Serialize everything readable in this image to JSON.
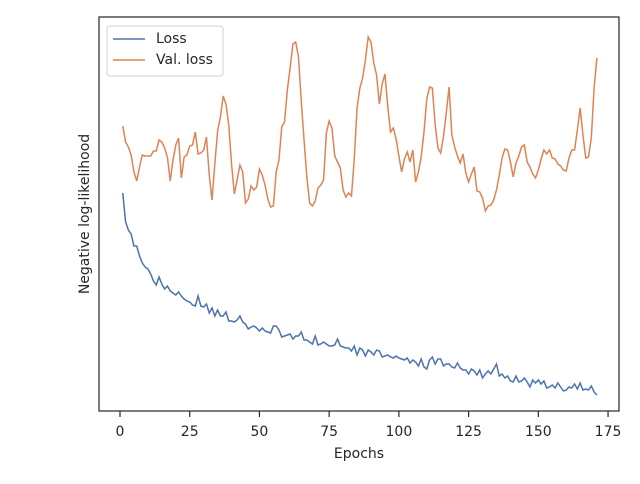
{
  "chart_data": {
    "type": "line",
    "xlabel": "Epochs",
    "ylabel": "Negative log-likelihood",
    "x": [
      1,
      2,
      3,
      4,
      5,
      6,
      7,
      8,
      9,
      10,
      11,
      12,
      13,
      14,
      15,
      16,
      17,
      18,
      19,
      20,
      21,
      22,
      23,
      24,
      25,
      26,
      27,
      28,
      29,
      30,
      31,
      32,
      33,
      34,
      35,
      36,
      37,
      38,
      39,
      40,
      41,
      42,
      43,
      44,
      45,
      46,
      47,
      48,
      49,
      50,
      51,
      52,
      53,
      54,
      55,
      56,
      57,
      58,
      59,
      60,
      61,
      62,
      63,
      64,
      65,
      66,
      67,
      68,
      69,
      70,
      71,
      72,
      73,
      74,
      75,
      76,
      77,
      78,
      79,
      80,
      81,
      82,
      83,
      84,
      85,
      86,
      87,
      88,
      89,
      90,
      91,
      92,
      93,
      94,
      95,
      96,
      97,
      98,
      99,
      100,
      101,
      102,
      103,
      104,
      105,
      106,
      107,
      108,
      109,
      110,
      111,
      112,
      113,
      114,
      115,
      116,
      117,
      118,
      119,
      120,
      121,
      122,
      123,
      124,
      125,
      126,
      127,
      128,
      129,
      130,
      131,
      132,
      133,
      134,
      135,
      136,
      137,
      138,
      139,
      140,
      141,
      142,
      143,
      144,
      145,
      146,
      147,
      148,
      149,
      150,
      151,
      152,
      153,
      154,
      155,
      156,
      157,
      158,
      159,
      160,
      161,
      162,
      163,
      164,
      165,
      166,
      167,
      168,
      169,
      170,
      171
    ],
    "series": [
      {
        "name": "Loss",
        "color": "#4c72b0",
        "values": [
          218,
          189,
          181,
          177,
          165,
          165,
          155,
          148,
          144,
          142,
          137,
          130,
          126,
          134,
          127,
          122,
          125,
          120,
          118,
          116,
          119,
          115,
          112,
          110,
          109,
          106,
          105,
          115,
          105,
          104,
          107,
          98,
          103,
          95,
          101,
          95,
          95,
          99,
          90,
          90,
          89,
          91,
          95,
          89,
          87,
          82,
          84,
          85,
          83,
          80,
          83,
          80,
          79,
          78,
          85,
          85,
          81,
          74,
          75,
          76,
          77,
          72,
          75,
          75,
          79,
          71,
          71,
          69,
          67,
          75,
          66,
          67,
          69,
          67,
          65,
          65,
          66,
          72,
          65,
          64,
          63,
          63,
          60,
          65,
          56,
          63,
          61,
          55,
          61,
          59,
          56,
          61,
          60,
          54,
          55,
          56,
          54,
          53,
          55,
          53,
          52,
          51,
          53,
          48,
          51,
          49,
          45,
          52,
          44,
          42,
          51,
          54,
          47,
          52,
          52,
          45,
          47,
          47,
          44,
          43,
          48,
          43,
          41,
          41,
          37,
          42,
          40,
          36,
          41,
          33,
          37,
          40,
          37,
          42,
          47,
          35,
          37,
          33,
          35,
          30,
          29,
          35,
          29,
          30,
          33,
          29,
          24,
          31,
          28,
          31,
          27,
          30,
          23,
          24,
          26,
          23,
          28,
          24,
          20,
          21,
          24,
          23,
          27,
          22,
          28,
          21,
          22,
          21,
          25,
          19,
          16
        ]
      },
      {
        "name": "Val. loss",
        "color": "#dd8452",
        "values": [
          285,
          269,
          264,
          256,
          239,
          230,
          244,
          256,
          255,
          255,
          255,
          260,
          260,
          271,
          269,
          263,
          254,
          230,
          251,
          266,
          273,
          233,
          254,
          256,
          265,
          266,
          279,
          257,
          258,
          261,
          274,
          236,
          211,
          247,
          280,
          294,
          315,
          307,
          286,
          247,
          217,
          231,
          246,
          239,
          208,
          212,
          225,
          221,
          224,
          242,
          236,
          226,
          212,
          204,
          205,
          239,
          251,
          284,
          289,
          321,
          343,
          367,
          369,
          354,
          310,
          271,
          234,
          208,
          205,
          210,
          223,
          226,
          231,
          278,
          290,
          283,
          255,
          249,
          243,
          221,
          214,
          218,
          215,
          252,
          303,
          323,
          333,
          351,
          374,
          369,
          348,
          336,
          307,
          327,
          337,
          305,
          279,
          283,
          272,
          255,
          239,
          252,
          259,
          249,
          261,
          229,
          239,
          254,
          279,
          312,
          324,
          323,
          287,
          263,
          258,
          275,
          298,
          324,
          276,
          264,
          255,
          248,
          257,
          238,
          229,
          237,
          244,
          220,
          219,
          213,
          200,
          205,
          206,
          211,
          221,
          236,
          253,
          262,
          261,
          249,
          234,
          248,
          255,
          264,
          266,
          249,
          244,
          237,
          233,
          241,
          252,
          261,
          257,
          261,
          253,
          252,
          247,
          245,
          241,
          240,
          253,
          261,
          261,
          281,
          303,
          276,
          253,
          254,
          273,
          323,
          353
        ]
      }
    ],
    "xlim": [
      -7.53,
      178.93
    ],
    "xticks": [
      0,
      25,
      50,
      75,
      100,
      125,
      150,
      175
    ],
    "ylim": [
      0,
      394
    ],
    "legend": "upper left"
  }
}
